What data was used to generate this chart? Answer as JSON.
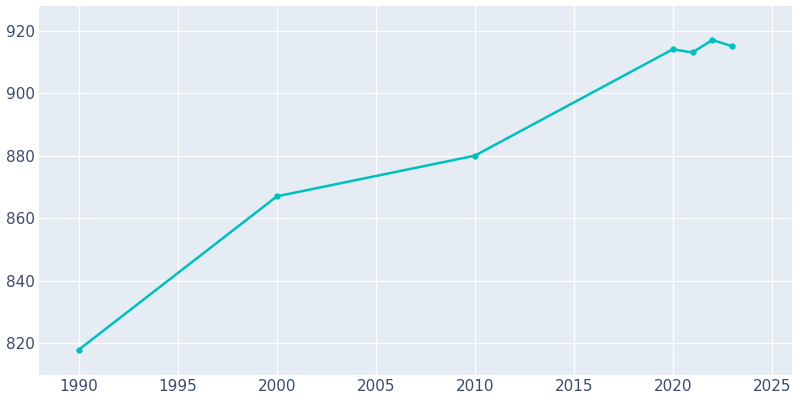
{
  "years": [
    1990,
    2000,
    2010,
    2020,
    2021,
    2022,
    2023
  ],
  "population": [
    818,
    867,
    880,
    914,
    913,
    917,
    915
  ],
  "line_color": "#00BFBF",
  "plot_bg_color": "#E6ECF4",
  "fig_bg_color": "#FFFFFF",
  "grid_color": "#FFFFFF",
  "xlim": [
    1988,
    2026
  ],
  "ylim": [
    810,
    928
  ],
  "xticks": [
    1990,
    1995,
    2000,
    2005,
    2010,
    2015,
    2020,
    2025
  ],
  "yticks": [
    820,
    840,
    860,
    880,
    900,
    920
  ],
  "tick_color": "#3C4A6B",
  "linewidth": 1.8,
  "marker": "o",
  "marker_size": 3.5,
  "tick_labelsize": 11
}
